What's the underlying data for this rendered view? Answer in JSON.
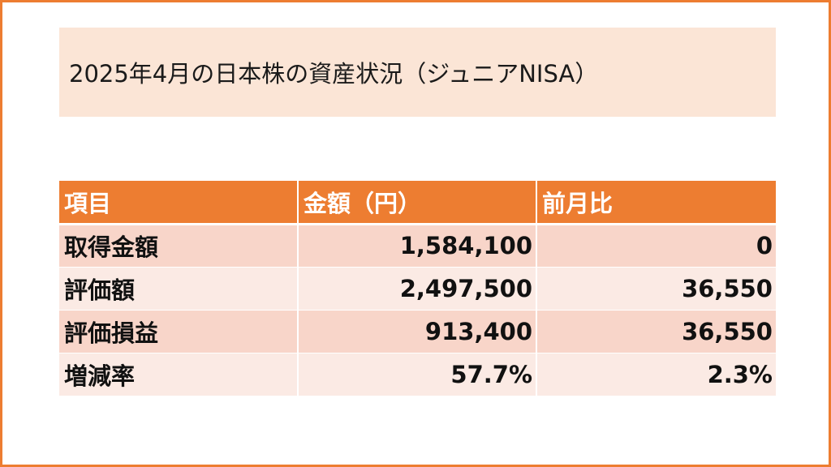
{
  "title": "2025年4月の日本株の資産状況（ジュニアNISA）",
  "table": {
    "headers": [
      "項目",
      "金額（円）",
      "前月比"
    ],
    "rows": [
      {
        "item": "取得金額",
        "amount": "1,584,100",
        "change": "0"
      },
      {
        "item": "評価額",
        "amount": "2,497,500",
        "change": "36,550"
      },
      {
        "item": "評価損益",
        "amount": "913,400",
        "change": "36,550"
      },
      {
        "item": "増減率",
        "amount": "57.7%",
        "change": "2.3%"
      }
    ]
  },
  "colors": {
    "accent": "#ED7D31",
    "title_background": "#FBE5D6",
    "row_odd": "#F8D5C9",
    "row_even": "#FBEAE4"
  }
}
